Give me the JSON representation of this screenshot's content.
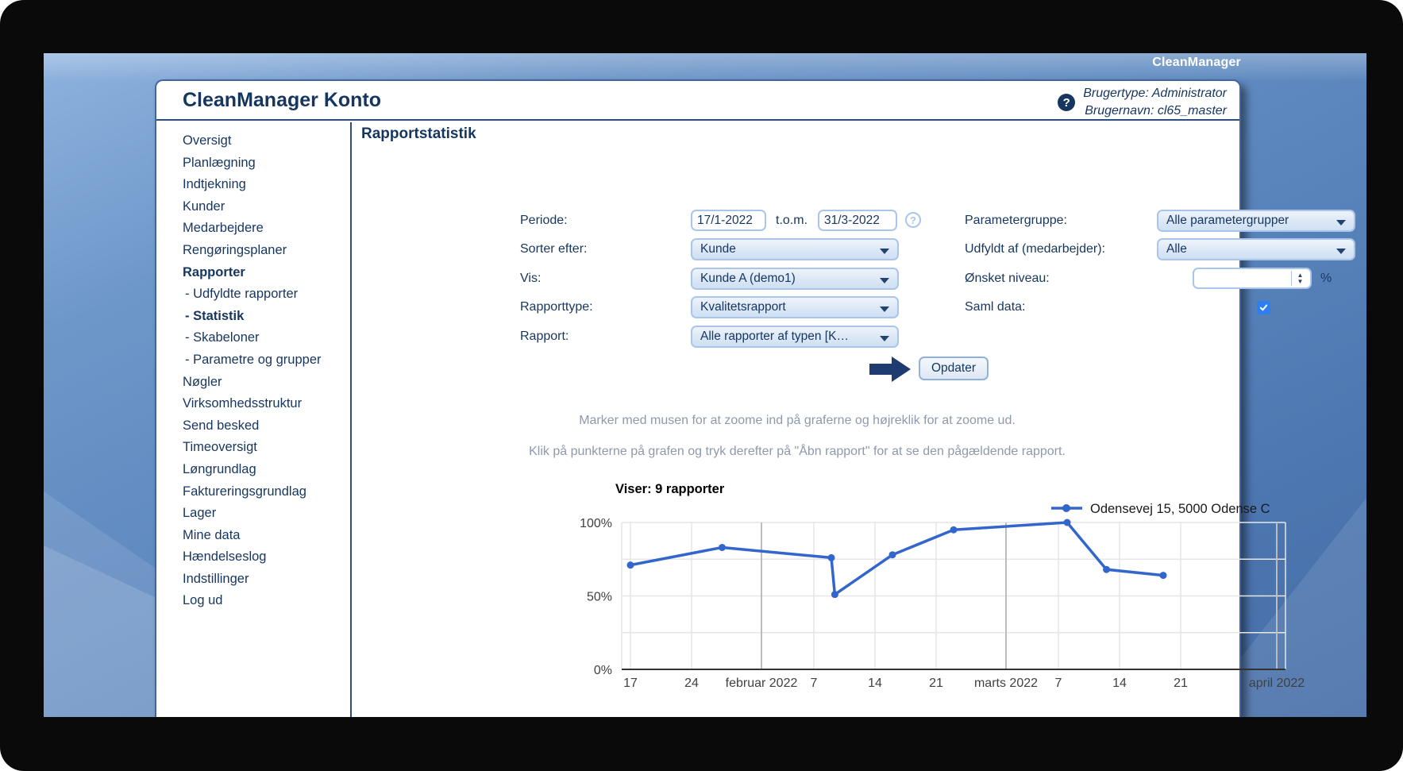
{
  "frame": {
    "brand": "CleanManager"
  },
  "window": {
    "title": "CleanManager Konto",
    "help_icon": "?",
    "user_type": "Brugertype: Administrator",
    "user_name": "Brugernavn: cl65_master"
  },
  "sidebar": {
    "items": [
      {
        "id": "oversigt",
        "label": "Oversigt",
        "bold": false,
        "indent": false
      },
      {
        "id": "planlaegning",
        "label": "Planlægning",
        "bold": false,
        "indent": false
      },
      {
        "id": "indtjekning",
        "label": "Indtjekning",
        "bold": false,
        "indent": false
      },
      {
        "id": "kunder",
        "label": "Kunder",
        "bold": false,
        "indent": false
      },
      {
        "id": "medarbejdere",
        "label": "Medarbejdere",
        "bold": false,
        "indent": false
      },
      {
        "id": "rengoeringsplaner",
        "label": "Rengøringsplaner",
        "bold": false,
        "indent": false
      },
      {
        "id": "rapporter",
        "label": "Rapporter",
        "bold": true,
        "indent": false
      },
      {
        "id": "udfyldte-rapporter",
        "label": "- Udfyldte rapporter",
        "bold": false,
        "indent": true
      },
      {
        "id": "statistik",
        "label": "- Statistik",
        "bold": true,
        "indent": true
      },
      {
        "id": "skabeloner",
        "label": "- Skabeloner",
        "bold": false,
        "indent": true
      },
      {
        "id": "parametre-og-grupper",
        "label": "- Parametre og grupper",
        "bold": false,
        "indent": true
      },
      {
        "id": "noegler",
        "label": "Nøgler",
        "bold": false,
        "indent": false
      },
      {
        "id": "virksomhedsstruktur",
        "label": "Virksomhedsstruktur",
        "bold": false,
        "indent": false
      },
      {
        "id": "send-besked",
        "label": "Send besked",
        "bold": false,
        "indent": false
      },
      {
        "id": "timeoversigt",
        "label": "Timeoversigt",
        "bold": false,
        "indent": false
      },
      {
        "id": "loengrundlag",
        "label": "Løngrundlag",
        "bold": false,
        "indent": false
      },
      {
        "id": "faktureringsgrundlag",
        "label": "Faktureringsgrundlag",
        "bold": false,
        "indent": false
      },
      {
        "id": "lager",
        "label": "Lager",
        "bold": false,
        "indent": false
      },
      {
        "id": "mine-data",
        "label": "Mine data",
        "bold": false,
        "indent": false
      },
      {
        "id": "haendelseslog",
        "label": "Hændelseslog",
        "bold": false,
        "indent": false
      },
      {
        "id": "indstillinger",
        "label": "Indstillinger",
        "bold": false,
        "indent": false
      },
      {
        "id": "log-ud",
        "label": "Log ud",
        "bold": false,
        "indent": false
      }
    ]
  },
  "main": {
    "heading": "Rapportstatistik",
    "form": {
      "periode_label": "Periode:",
      "periode_from": "17/1-2022",
      "tom_label": "t.o.m.",
      "periode_to": "31/3-2022",
      "sorter_label": "Sorter efter:",
      "sorter_value": "Kunde",
      "vis_label": "Vis:",
      "vis_value": "Kunde A (demo1)",
      "rapporttype_label": "Rapporttype:",
      "rapporttype_value": "Kvalitetsrapport",
      "rapport_label": "Rapport:",
      "rapport_value": "Alle rapporter af typen [K…",
      "parametergruppe_label": "Parametergruppe:",
      "parametergruppe_value": "Alle parametergrupper",
      "udfyldt_label": "Udfyldt af (medarbejder):",
      "udfyldt_value": "Alle",
      "niveau_label": "Ønsket niveau:",
      "niveau_value": "",
      "percent_label": "%",
      "saml_label": "Saml data:",
      "saml_checked": true,
      "update_button": "Opdater",
      "help_icon": "?"
    },
    "instructions": [
      "Marker med musen for at zoome ind på graferne og højreklik for at zoome ud.",
      "Klik på punkterne på grafen og tryk derefter på \"Åbn rapport\" for at se den pågældende rapport."
    ]
  },
  "chart_data": {
    "type": "line",
    "title": "Viser: 9 rapporter",
    "legend_position": "top-right",
    "grid": true,
    "ylim": [
      0,
      100
    ],
    "y_ticks": [
      "0%",
      "50%",
      "100%"
    ],
    "x_range_days": 76,
    "x_start": "16/1-2022",
    "x_ticks": [
      {
        "label": "17",
        "day": 1,
        "month": false
      },
      {
        "label": "24",
        "day": 8,
        "month": false
      },
      {
        "label": "februar 2022",
        "day": 16,
        "month": true
      },
      {
        "label": "7",
        "day": 22,
        "month": false
      },
      {
        "label": "14",
        "day": 29,
        "month": false
      },
      {
        "label": "21",
        "day": 36,
        "month": false
      },
      {
        "label": "marts 2022",
        "day": 44,
        "month": true
      },
      {
        "label": "7",
        "day": 50,
        "month": false
      },
      {
        "label": "14",
        "day": 57,
        "month": false
      },
      {
        "label": "21",
        "day": 64,
        "month": false
      },
      {
        "label": "april 2022",
        "day": 75,
        "month": true
      }
    ],
    "series": [
      {
        "name": "Odensevej 15, 5000 Odense C",
        "color": "#3366cc",
        "points": [
          {
            "date": "17/1-2022",
            "day": 1,
            "value": 71
          },
          {
            "date": "27/1-2022",
            "day": 11.5,
            "value": 83
          },
          {
            "date": "9/2-2022",
            "day": 24,
            "value": 76
          },
          {
            "date": "9/2-2022",
            "day": 24.4,
            "value": 51
          },
          {
            "date": "16/2-2022",
            "day": 31,
            "value": 78
          },
          {
            "date": "23/2-2022",
            "day": 38,
            "value": 95
          },
          {
            "date": "8/3-2022",
            "day": 51,
            "value": 100
          },
          {
            "date": "12/3-2022",
            "day": 55.5,
            "value": 68
          },
          {
            "date": "19/3-2022",
            "day": 62,
            "value": 64
          }
        ]
      }
    ],
    "colors": {
      "line": "#3366cc",
      "gridline": "#e6e6e6",
      "month_gridline": "#bcbcbc",
      "axis": "#333333",
      "tick_text": "#404040"
    }
  }
}
